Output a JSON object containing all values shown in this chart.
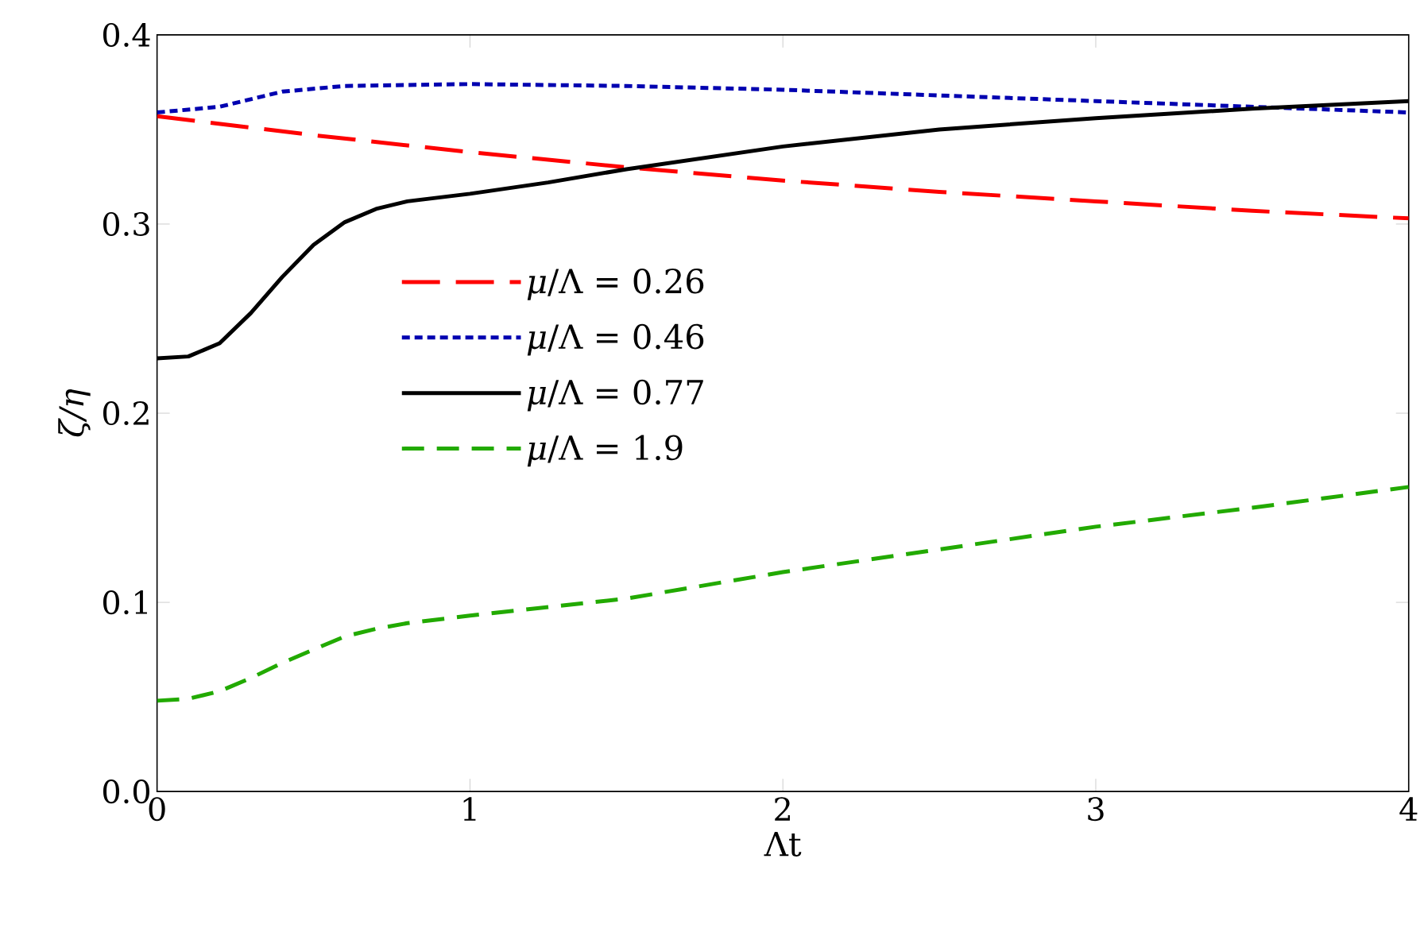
{
  "chart_data": {
    "type": "line",
    "xlabel": "Λt",
    "ylabel": "ζ/η",
    "xlim": [
      0,
      4
    ],
    "ylim": [
      0,
      0.4
    ],
    "xticks": [
      0,
      1,
      2,
      3,
      4
    ],
    "yticks": [
      {
        "value": 0,
        "label": "0.0"
      },
      {
        "value": 0.1,
        "label": "0.1"
      },
      {
        "value": 0.2,
        "label": "0.2"
      },
      {
        "value": 0.3,
        "label": "0.3"
      },
      {
        "value": 0.4,
        "label": "0.4"
      }
    ],
    "grid": false,
    "legend": "left",
    "marker": "none",
    "series": [
      {
        "name": "*μ*/Λ = 0.26",
        "color": "#ff0000",
        "line_style": "dashed",
        "x": [
          0,
          0.5,
          1,
          1.5,
          2,
          2.5,
          3,
          3.5,
          4
        ],
        "values": [
          0.357,
          0.347,
          0.338,
          0.33,
          0.323,
          0.317,
          0.312,
          0.307,
          0.303
        ]
      },
      {
        "name": "*μ*/Λ = 0.46",
        "color": "#0000b0",
        "line_style": "dotted",
        "x": [
          0,
          0.2,
          0.4,
          0.6,
          1,
          1.5,
          2,
          2.5,
          3,
          3.5,
          4
        ],
        "values": [
          0.359,
          0.362,
          0.37,
          0.373,
          0.374,
          0.373,
          0.371,
          0.368,
          0.365,
          0.362,
          0.359
        ]
      },
      {
        "name": "*μ*/Λ = 0.77",
        "color": "#000000",
        "line_style": "solid",
        "x": [
          0,
          0.1,
          0.2,
          0.3,
          0.4,
          0.5,
          0.6,
          0.7,
          0.8,
          1,
          1.25,
          1.5,
          2,
          2.5,
          3,
          3.5,
          4
        ],
        "values": [
          0.229,
          0.23,
          0.237,
          0.253,
          0.272,
          0.289,
          0.301,
          0.308,
          0.312,
          0.316,
          0.322,
          0.329,
          0.341,
          0.35,
          0.356,
          0.361,
          0.365
        ]
      },
      {
        "name": "*μ*/Λ = 1.9",
        "color": "#22aa00",
        "line_style": "dashed",
        "x": [
          0,
          0.1,
          0.2,
          0.3,
          0.4,
          0.5,
          0.6,
          0.7,
          0.8,
          1,
          1.5,
          2,
          2.5,
          3,
          3.5,
          4
        ],
        "values": [
          0.048,
          0.049,
          0.053,
          0.06,
          0.068,
          0.075,
          0.082,
          0.086,
          0.089,
          0.093,
          0.102,
          0.116,
          0.128,
          0.14,
          0.15,
          0.161
        ]
      }
    ]
  }
}
